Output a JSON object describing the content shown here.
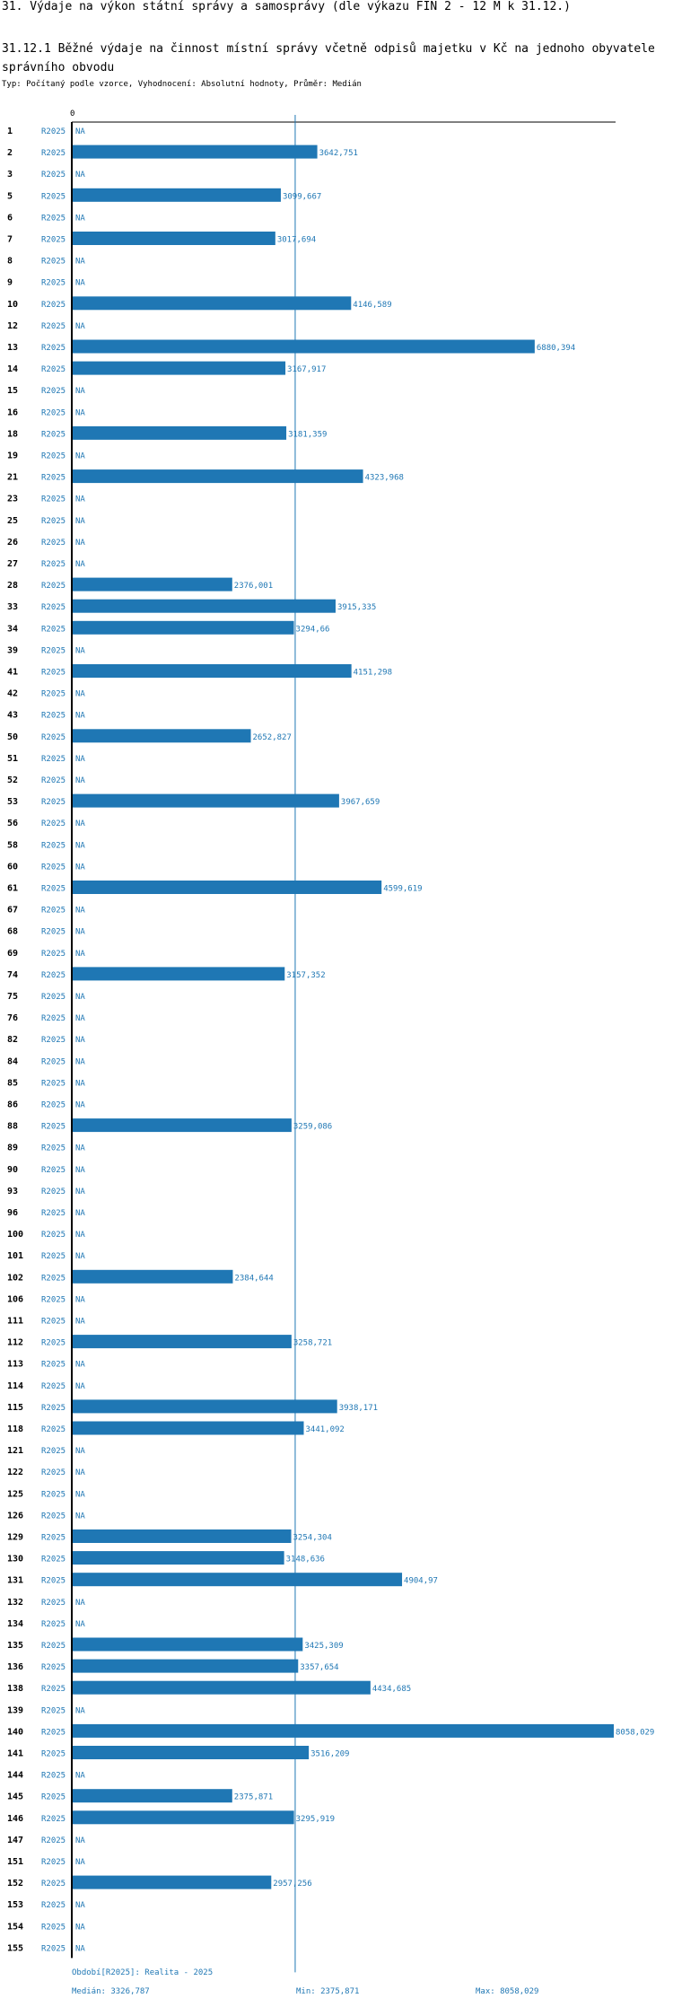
{
  "header": {
    "title": "31. Výdaje na výkon státní správy a samosprávy (dle výkazu FIN 2 - 12 M k 31.12.)",
    "subtitle": "31.12.1 Běžné výdaje na činnost místní správy včetně odpisů majetku v Kč na jednoho obyvatele správního obvodu",
    "note": "Typ: Počítaný podle vzorce, Vyhodnocení: Absolutní hodnoty, Průměr: Medián"
  },
  "footer": {
    "period_legend": "Období[R2025]: Realita - 2025",
    "median_label": "Medián: 3326,787",
    "min_label": "Min: 2375,871",
    "max_label": "Max: 8058,029"
  },
  "colors": {
    "bar": "#1f77b4",
    "text": "#1f77b4",
    "axis": "#000000"
  },
  "chart_data": {
    "type": "bar",
    "orientation": "horizontal",
    "title": "31.12.1 Běžné výdaje na činnost místní správy včetně odpisů majetku v Kč na jednoho obyvatele správního obvodu",
    "xlabel": "",
    "ylabel": "",
    "x_tick": "0",
    "xlim": [
      0,
      8058.029
    ],
    "median": 3326.787,
    "period": "R2025",
    "missing_label": "NA",
    "rows": [
      {
        "id": "1",
        "value": null,
        "label": "NA"
      },
      {
        "id": "2",
        "value": 3642.751,
        "label": "3642,751"
      },
      {
        "id": "3",
        "value": null,
        "label": "NA"
      },
      {
        "id": "5",
        "value": 3099.667,
        "label": "3099,667"
      },
      {
        "id": "6",
        "value": null,
        "label": "NA"
      },
      {
        "id": "7",
        "value": 3017.694,
        "label": "3017,694"
      },
      {
        "id": "8",
        "value": null,
        "label": "NA"
      },
      {
        "id": "9",
        "value": null,
        "label": "NA"
      },
      {
        "id": "10",
        "value": 4146.589,
        "label": "4146,589"
      },
      {
        "id": "12",
        "value": null,
        "label": "NA"
      },
      {
        "id": "13",
        "value": 6880.394,
        "label": "6880,394"
      },
      {
        "id": "14",
        "value": 3167.917,
        "label": "3167,917"
      },
      {
        "id": "15",
        "value": null,
        "label": "NA"
      },
      {
        "id": "16",
        "value": null,
        "label": "NA"
      },
      {
        "id": "18",
        "value": 3181.359,
        "label": "3181,359"
      },
      {
        "id": "19",
        "value": null,
        "label": "NA"
      },
      {
        "id": "21",
        "value": 4323.968,
        "label": "4323,968"
      },
      {
        "id": "23",
        "value": null,
        "label": "NA"
      },
      {
        "id": "25",
        "value": null,
        "label": "NA"
      },
      {
        "id": "26",
        "value": null,
        "label": "NA"
      },
      {
        "id": "27",
        "value": null,
        "label": "NA"
      },
      {
        "id": "28",
        "value": 2376.001,
        "label": "2376,001"
      },
      {
        "id": "33",
        "value": 3915.335,
        "label": "3915,335"
      },
      {
        "id": "34",
        "value": 3294.66,
        "label": "3294,66"
      },
      {
        "id": "39",
        "value": null,
        "label": "NA"
      },
      {
        "id": "41",
        "value": 4151.298,
        "label": "4151,298"
      },
      {
        "id": "42",
        "value": null,
        "label": "NA"
      },
      {
        "id": "43",
        "value": null,
        "label": "NA"
      },
      {
        "id": "50",
        "value": 2652.827,
        "label": "2652,827"
      },
      {
        "id": "51",
        "value": null,
        "label": "NA"
      },
      {
        "id": "52",
        "value": null,
        "label": "NA"
      },
      {
        "id": "53",
        "value": 3967.659,
        "label": "3967,659"
      },
      {
        "id": "56",
        "value": null,
        "label": "NA"
      },
      {
        "id": "58",
        "value": null,
        "label": "NA"
      },
      {
        "id": "60",
        "value": null,
        "label": "NA"
      },
      {
        "id": "61",
        "value": 4599.619,
        "label": "4599,619"
      },
      {
        "id": "67",
        "value": null,
        "label": "NA"
      },
      {
        "id": "68",
        "value": null,
        "label": "NA"
      },
      {
        "id": "69",
        "value": null,
        "label": "NA"
      },
      {
        "id": "74",
        "value": 3157.352,
        "label": "3157,352"
      },
      {
        "id": "75",
        "value": null,
        "label": "NA"
      },
      {
        "id": "76",
        "value": null,
        "label": "NA"
      },
      {
        "id": "82",
        "value": null,
        "label": "NA"
      },
      {
        "id": "84",
        "value": null,
        "label": "NA"
      },
      {
        "id": "85",
        "value": null,
        "label": "NA"
      },
      {
        "id": "86",
        "value": null,
        "label": "NA"
      },
      {
        "id": "88",
        "value": 3259.086,
        "label": "3259,086"
      },
      {
        "id": "89",
        "value": null,
        "label": "NA"
      },
      {
        "id": "90",
        "value": null,
        "label": "NA"
      },
      {
        "id": "93",
        "value": null,
        "label": "NA"
      },
      {
        "id": "96",
        "value": null,
        "label": "NA"
      },
      {
        "id": "100",
        "value": null,
        "label": "NA"
      },
      {
        "id": "101",
        "value": null,
        "label": "NA"
      },
      {
        "id": "102",
        "value": 2384.644,
        "label": "2384,644"
      },
      {
        "id": "106",
        "value": null,
        "label": "NA"
      },
      {
        "id": "111",
        "value": null,
        "label": "NA"
      },
      {
        "id": "112",
        "value": 3258.721,
        "label": "3258,721"
      },
      {
        "id": "113",
        "value": null,
        "label": "NA"
      },
      {
        "id": "114",
        "value": null,
        "label": "NA"
      },
      {
        "id": "115",
        "value": 3938.171,
        "label": "3938,171"
      },
      {
        "id": "118",
        "value": 3441.092,
        "label": "3441,092"
      },
      {
        "id": "121",
        "value": null,
        "label": "NA"
      },
      {
        "id": "122",
        "value": null,
        "label": "NA"
      },
      {
        "id": "125",
        "value": null,
        "label": "NA"
      },
      {
        "id": "126",
        "value": null,
        "label": "NA"
      },
      {
        "id": "129",
        "value": 3254.304,
        "label": "3254,304"
      },
      {
        "id": "130",
        "value": 3148.636,
        "label": "3148,636"
      },
      {
        "id": "131",
        "value": 4904.97,
        "label": "4904,97"
      },
      {
        "id": "132",
        "value": null,
        "label": "NA"
      },
      {
        "id": "134",
        "value": null,
        "label": "NA"
      },
      {
        "id": "135",
        "value": 3425.309,
        "label": "3425,309"
      },
      {
        "id": "136",
        "value": 3357.654,
        "label": "3357,654"
      },
      {
        "id": "138",
        "value": 4434.685,
        "label": "4434,685"
      },
      {
        "id": "139",
        "value": null,
        "label": "NA"
      },
      {
        "id": "140",
        "value": 8058.029,
        "label": "8058,029"
      },
      {
        "id": "141",
        "value": 3516.209,
        "label": "3516,209"
      },
      {
        "id": "144",
        "value": null,
        "label": "NA"
      },
      {
        "id": "145",
        "value": 2375.871,
        "label": "2375,871"
      },
      {
        "id": "146",
        "value": 3295.919,
        "label": "3295,919"
      },
      {
        "id": "147",
        "value": null,
        "label": "NA"
      },
      {
        "id": "151",
        "value": null,
        "label": "NA"
      },
      {
        "id": "152",
        "value": 2957.256,
        "label": "2957,256"
      },
      {
        "id": "153",
        "value": null,
        "label": "NA"
      },
      {
        "id": "154",
        "value": null,
        "label": "NA"
      },
      {
        "id": "155",
        "value": null,
        "label": "NA"
      }
    ]
  }
}
